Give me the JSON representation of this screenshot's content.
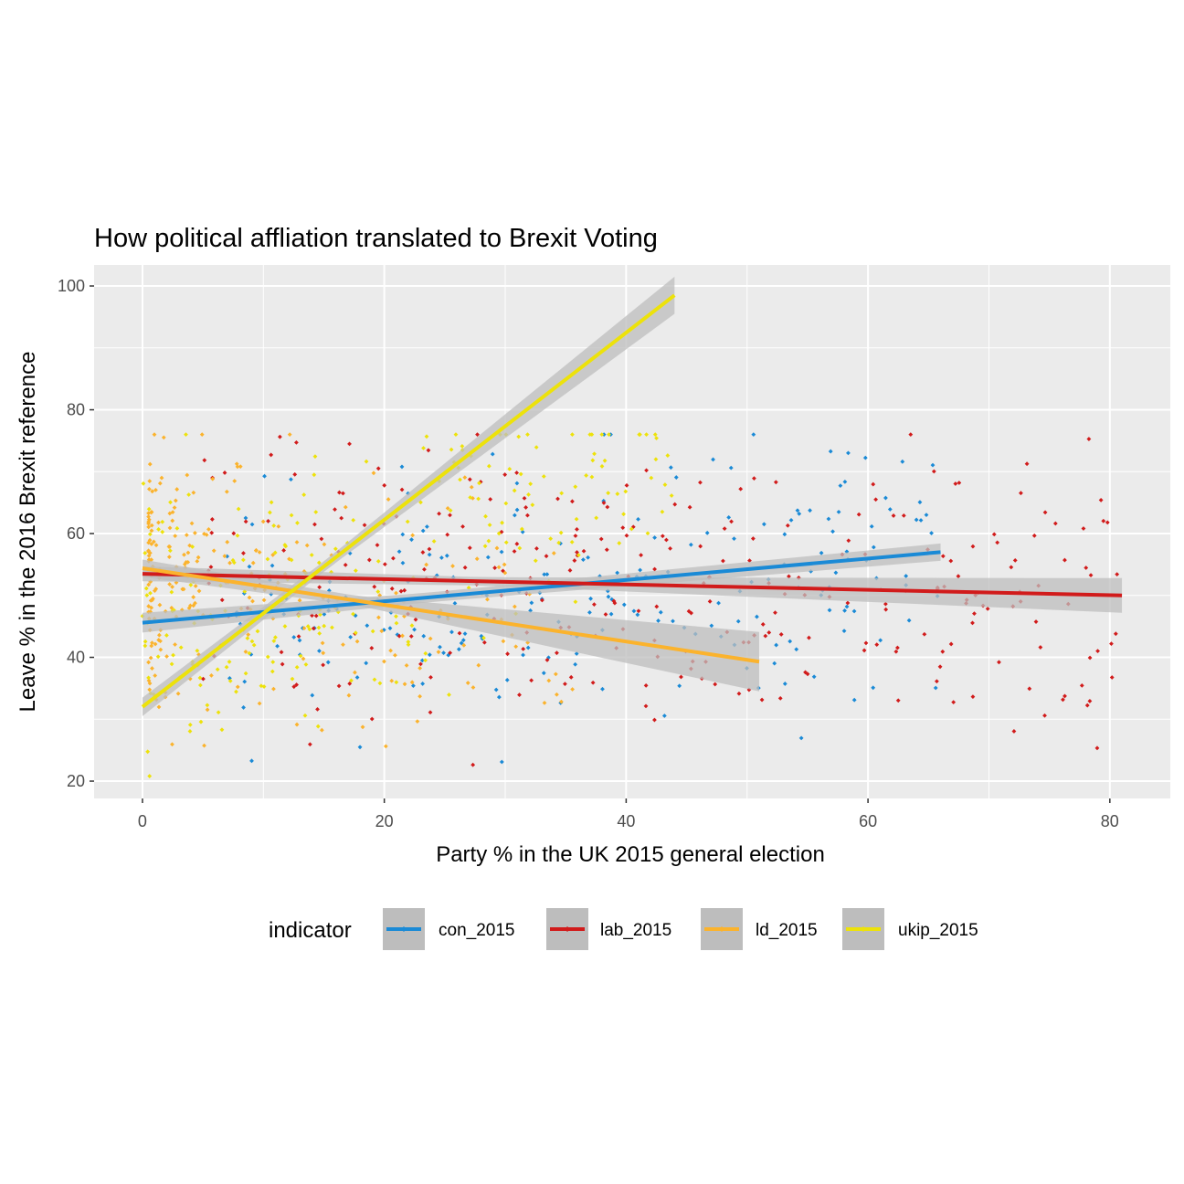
{
  "chart_data": {
    "type": "scatter",
    "title": "How political affliation translated to Brexit Voting",
    "xlabel": "Party % in the UK 2015 general election",
    "ylabel": "Leave % in the 2016 Brexit reference",
    "xlim": [
      -4,
      85
    ],
    "ylim": [
      17.2,
      103.4
    ],
    "x_ticks": [
      0,
      20,
      40,
      60,
      80
    ],
    "x_tick_labels": [
      "0",
      "20",
      "40",
      "60",
      "80"
    ],
    "y_ticks": [
      20,
      40,
      60,
      80,
      100
    ],
    "y_tick_labels": [
      "20",
      "40",
      "60",
      "80",
      "100"
    ],
    "grid": true,
    "panel_background": "#ebebeb",
    "grid_color": "#ffffff",
    "ribbon_color": "#bdbdbd",
    "legend": {
      "title": "indicator",
      "position": "bottom"
    },
    "series": [
      {
        "name": "con_2015",
        "color": "#1a8ad6",
        "trend": {
          "x": [
            0,
            66
          ],
          "y": [
            45.6,
            57.0
          ],
          "ci_half_width": [
            1.6,
            1.4
          ]
        },
        "cloud": {
          "x": [
            7,
            66
          ],
          "y": [
            20,
            76
          ],
          "mean_y": 50,
          "count": 230
        }
      },
      {
        "name": "lab_2015",
        "color": "#d11b1b",
        "trend": {
          "x": [
            0,
            81
          ],
          "y": [
            53.5,
            50.0
          ],
          "ci_half_width": [
            1.2,
            2.8
          ]
        },
        "cloud": {
          "x": [
            5,
            81
          ],
          "y": [
            20,
            76
          ],
          "mean_y": 51,
          "count": 300
        }
      },
      {
        "name": "ld_2015",
        "color": "#fbb32d",
        "trend": {
          "x": [
            0,
            51
          ],
          "y": [
            54.4,
            39.3
          ],
          "ci_half_width": [
            1.4,
            4.8
          ]
        },
        "cloud": {
          "x": [
            0.5,
            36
          ],
          "y": [
            20,
            76
          ],
          "mean_y": 52,
          "count": 260
        }
      },
      {
        "name": "ukip_2015",
        "color": "#ede20a",
        "trend": {
          "x": [
            0,
            44
          ],
          "y": [
            32.0,
            98.5
          ],
          "ci_half_width": [
            1.5,
            3.0
          ]
        },
        "cloud": {
          "x": [
            0,
            44
          ],
          "y": [
            20,
            76
          ],
          "mean_y": 51,
          "count": 230
        }
      }
    ]
  }
}
